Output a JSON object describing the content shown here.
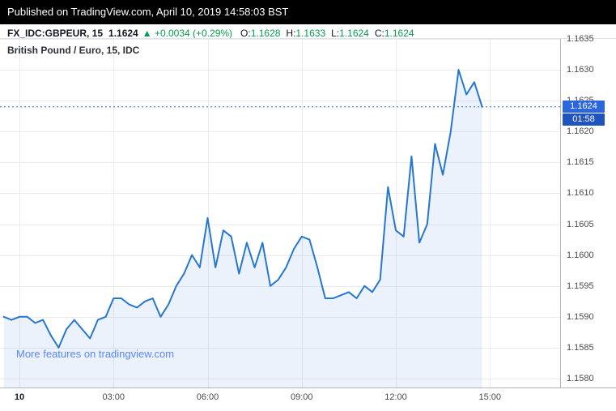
{
  "header": {
    "published": "Published on TradingView.com, April 10, 2019 14:58:03 BST"
  },
  "legend": {
    "symbol": "FX_IDC:GBPEUR, 15",
    "last": "1.1624",
    "direction_icon": "▲",
    "change": "+0.0034 (+0.29%)",
    "o_label": "O:",
    "o_value": "1.1628",
    "h_label": "H:",
    "h_value": "1.1633",
    "l_label": "L:",
    "l_value": "1.1624",
    "c_label": "C:",
    "c_value": "1.1624"
  },
  "chart_title": "British Pound / Euro, 15, IDC",
  "watermark": "More features on tradingview.com",
  "price_label": {
    "value": "1.1624",
    "countdown": "01:58"
  },
  "colors": {
    "line": "#2577cf",
    "area": "rgba(41,116,219,0.09)",
    "grid": "#ececec",
    "badge": "#2a66dd",
    "countdown": "#1e53c0",
    "green": "#089950",
    "axis_text": "#4a4a4a"
  },
  "chart_data": {
    "type": "line",
    "title": "British Pound / Euro, 15, IDC",
    "symbol": "FX_IDC:GBPEUR",
    "interval_minutes": 15,
    "date": "April 10, 2019",
    "ohlc": {
      "open": 1.1628,
      "high": 1.1633,
      "low": 1.1624,
      "close": 1.1624
    },
    "last_price": 1.1624,
    "ylim": [
      1.158,
      1.1635
    ],
    "yticks": [
      1.1635,
      1.163,
      1.1625,
      1.162,
      1.1615,
      1.161,
      1.1605,
      1.16,
      1.1595,
      1.159,
      1.1585,
      1.158
    ],
    "xticks": [
      {
        "label": "10",
        "t": 0
      },
      {
        "label": "03:00",
        "t": 180
      },
      {
        "label": "06:00",
        "t": 360
      },
      {
        "label": "09:00",
        "t": 540
      },
      {
        "label": "12:00",
        "t": 720
      },
      {
        "label": "15:00",
        "t": 900
      }
    ],
    "x_unit": "minutes since 00:00 on April 10",
    "series": [
      {
        "name": "GBPEUR close",
        "points": [
          [
            -30,
            1.159
          ],
          [
            -15,
            1.15895
          ],
          [
            0,
            1.159
          ],
          [
            15,
            1.159
          ],
          [
            30,
            1.1589
          ],
          [
            45,
            1.15895
          ],
          [
            60,
            1.1587
          ],
          [
            75,
            1.1585
          ],
          [
            90,
            1.1588
          ],
          [
            105,
            1.15895
          ],
          [
            120,
            1.1588
          ],
          [
            135,
            1.15865
          ],
          [
            150,
            1.15895
          ],
          [
            165,
            1.159
          ],
          [
            180,
            1.1593
          ],
          [
            195,
            1.1593
          ],
          [
            210,
            1.1592
          ],
          [
            225,
            1.15915
          ],
          [
            240,
            1.15925
          ],
          [
            255,
            1.1593
          ],
          [
            270,
            1.159
          ],
          [
            285,
            1.1592
          ],
          [
            300,
            1.1595
          ],
          [
            315,
            1.1597
          ],
          [
            330,
            1.16
          ],
          [
            345,
            1.1598
          ],
          [
            360,
            1.1606
          ],
          [
            375,
            1.1598
          ],
          [
            390,
            1.1604
          ],
          [
            405,
            1.1603
          ],
          [
            420,
            1.1597
          ],
          [
            435,
            1.1602
          ],
          [
            450,
            1.1598
          ],
          [
            465,
            1.1602
          ],
          [
            480,
            1.1595
          ],
          [
            495,
            1.1596
          ],
          [
            510,
            1.1598
          ],
          [
            525,
            1.1601
          ],
          [
            540,
            1.1603
          ],
          [
            555,
            1.16025
          ],
          [
            570,
            1.1598
          ],
          [
            585,
            1.1593
          ],
          [
            600,
            1.1593
          ],
          [
            615,
            1.15935
          ],
          [
            630,
            1.1594
          ],
          [
            645,
            1.1593
          ],
          [
            660,
            1.1595
          ],
          [
            675,
            1.1594
          ],
          [
            690,
            1.1596
          ],
          [
            705,
            1.1611
          ],
          [
            720,
            1.1604
          ],
          [
            735,
            1.1603
          ],
          [
            750,
            1.1616
          ],
          [
            765,
            1.1602
          ],
          [
            780,
            1.1605
          ],
          [
            795,
            1.1618
          ],
          [
            810,
            1.1613
          ],
          [
            825,
            1.162
          ],
          [
            840,
            1.163
          ],
          [
            855,
            1.1626
          ],
          [
            870,
            1.1628
          ],
          [
            885,
            1.1624
          ]
        ]
      }
    ],
    "legend_position": "top-left",
    "grid": true
  }
}
